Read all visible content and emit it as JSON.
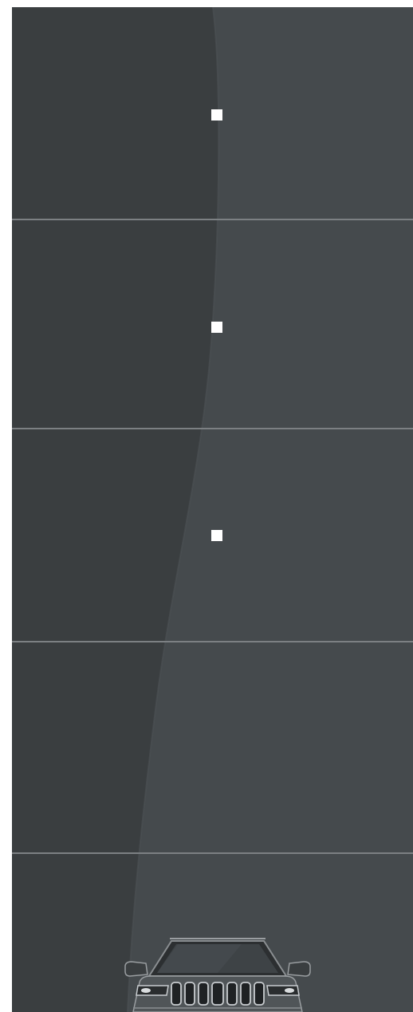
{
  "panels": [
    {
      "id": "panel-1",
      "has_indicator": true
    },
    {
      "id": "panel-2",
      "has_indicator": true
    },
    {
      "id": "panel-3",
      "has_indicator": true
    },
    {
      "id": "panel-4",
      "has_indicator": false
    },
    {
      "id": "panel-5",
      "has_indicator": false
    }
  ],
  "vehicle": {
    "icon": "suv-front-image"
  },
  "colors": {
    "background_light": "#454a4d",
    "background_dark": "#3a3e40",
    "divider": "#7c8083",
    "indicator": "#ffffff"
  }
}
